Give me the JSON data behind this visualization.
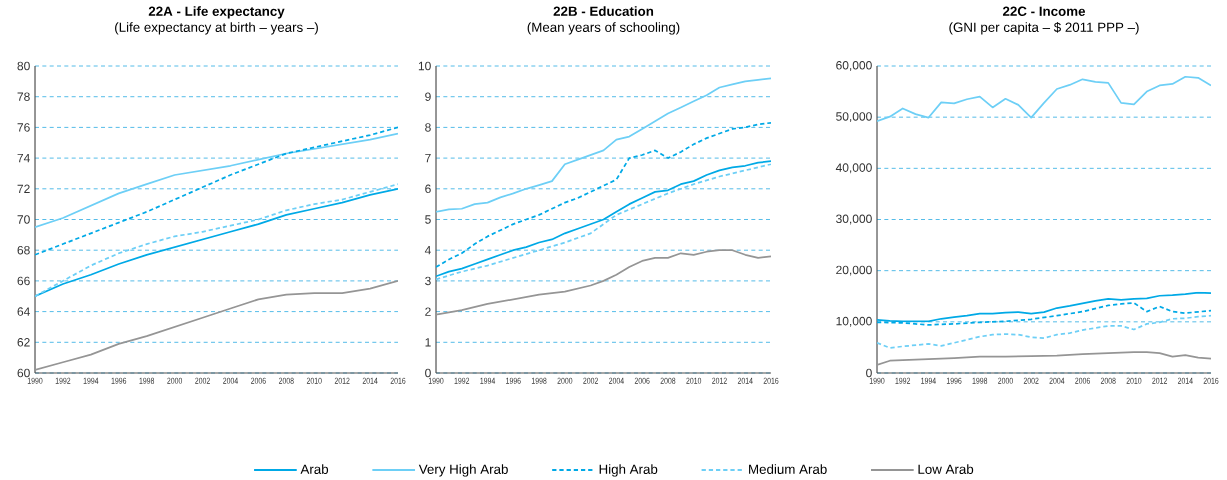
{
  "chart_data": [
    {
      "type": "line",
      "title": "22A - Life expectancy",
      "subtitle": "(Life expectancy at birth – years –)",
      "xlim": [
        1990,
        2016
      ],
      "ylim": [
        60,
        80
      ],
      "xticks": [
        1990,
        1992,
        1994,
        1996,
        1998,
        2000,
        2002,
        2004,
        2006,
        2008,
        2010,
        2012,
        2014,
        2016
      ],
      "yticks": [
        60,
        62,
        64,
        66,
        68,
        70,
        72,
        74,
        76,
        78,
        80
      ],
      "grid": "y",
      "legend": "bottom",
      "series": [
        {
          "name": "Arab",
          "color": "#00a9e6",
          "line_style": "solid",
          "x": [
            1990,
            1992,
            1994,
            1996,
            1998,
            2000,
            2002,
            2004,
            2006,
            2008,
            2010,
            2012,
            2014,
            2016
          ],
          "values": [
            65.0,
            65.8,
            66.4,
            67.1,
            67.7,
            68.2,
            68.7,
            69.2,
            69.7,
            70.3,
            70.7,
            71.1,
            71.6,
            72.0
          ]
        },
        {
          "name": "Very High Arab",
          "color": "#6dcff6",
          "line_style": "solid",
          "x": [
            1990,
            1992,
            1994,
            1996,
            1998,
            2000,
            2002,
            2004,
            2006,
            2008,
            2010,
            2012,
            2014,
            2016
          ],
          "values": [
            69.5,
            70.1,
            70.9,
            71.7,
            72.3,
            72.9,
            73.2,
            73.5,
            73.9,
            74.3,
            74.6,
            74.9,
            75.2,
            75.6
          ]
        },
        {
          "name": "High Arab",
          "color": "#00a9e6",
          "line_style": "dashed",
          "x": [
            1990,
            1992,
            1994,
            1996,
            1998,
            2000,
            2002,
            2004,
            2006,
            2008,
            2010,
            2012,
            2014,
            2016
          ],
          "values": [
            67.7,
            68.4,
            69.1,
            69.8,
            70.5,
            71.3,
            72.1,
            72.9,
            73.6,
            74.3,
            74.7,
            75.1,
            75.5,
            76.0
          ]
        },
        {
          "name": "Medium Arab",
          "color": "#6dcff6",
          "line_style": "dashed",
          "x": [
            1990,
            1992,
            1994,
            1996,
            1998,
            2000,
            2002,
            2004,
            2006,
            2008,
            2010,
            2012,
            2014,
            2016
          ],
          "values": [
            65.0,
            66.0,
            67.0,
            67.8,
            68.4,
            68.9,
            69.2,
            69.6,
            70.0,
            70.6,
            71.0,
            71.3,
            71.8,
            72.3
          ]
        },
        {
          "name": "Low Arab",
          "color": "#959595",
          "line_style": "solid",
          "x": [
            1990,
            1992,
            1994,
            1996,
            1998,
            2000,
            2002,
            2004,
            2006,
            2008,
            2010,
            2012,
            2014,
            2016
          ],
          "values": [
            60.2,
            60.7,
            61.2,
            61.9,
            62.4,
            63.0,
            63.6,
            64.2,
            64.8,
            65.1,
            65.2,
            65.2,
            65.5,
            66.0
          ]
        }
      ]
    },
    {
      "type": "line",
      "title": "22B - Education",
      "subtitle": "(Mean years of schooling)",
      "xlim": [
        1990,
        2016
      ],
      "ylim": [
        0,
        10
      ],
      "xticks": [
        1990,
        1992,
        1994,
        1996,
        1998,
        2000,
        2002,
        2004,
        2006,
        2008,
        2010,
        2012,
        2014,
        2016
      ],
      "yticks": [
        0,
        1,
        2,
        3,
        4,
        5,
        6,
        7,
        8,
        9,
        10
      ],
      "grid": "y",
      "series": [
        {
          "color": "#00a9e6",
          "line_style": "solid",
          "x": [
            1990,
            1991,
            1992,
            1993,
            1994,
            1995,
            1996,
            1997,
            1998,
            1999,
            2000,
            2001,
            2002,
            2003,
            2004,
            2005,
            2006,
            2007,
            2008,
            2009,
            2010,
            2011,
            2012,
            2013,
            2014,
            2015,
            2016
          ],
          "values": [
            3.15,
            3.3,
            3.4,
            3.55,
            3.7,
            3.85,
            4.0,
            4.1,
            4.25,
            4.35,
            4.55,
            4.7,
            4.85,
            5.0,
            5.25,
            5.5,
            5.7,
            5.9,
            5.95,
            6.15,
            6.25,
            6.45,
            6.6,
            6.7,
            6.75,
            6.85,
            6.9
          ]
        },
        {
          "color": "#6dcff6",
          "line_style": "solid",
          "x": [
            1990,
            1991,
            1992,
            1993,
            1994,
            1995,
            1996,
            1997,
            1998,
            1999,
            2000,
            2001,
            2002,
            2003,
            2004,
            2005,
            2006,
            2007,
            2008,
            2009,
            2010,
            2011,
            2012,
            2013,
            2014,
            2015,
            2016
          ],
          "values": [
            5.25,
            5.33,
            5.35,
            5.5,
            5.55,
            5.72,
            5.85,
            6.0,
            6.12,
            6.25,
            6.8,
            6.95,
            7.1,
            7.25,
            7.6,
            7.7,
            7.95,
            8.2,
            8.45,
            8.65,
            8.85,
            9.05,
            9.3,
            9.4,
            9.5,
            9.55,
            9.6
          ]
        },
        {
          "color": "#00a9e6",
          "line_style": "dashed",
          "x": [
            1990,
            1991,
            1992,
            1993,
            1994,
            1995,
            1996,
            1997,
            1998,
            1999,
            2000,
            2001,
            2002,
            2003,
            2004,
            2005,
            2006,
            2007,
            2008,
            2009,
            2010,
            2011,
            2012,
            2013,
            2014,
            2015,
            2016
          ],
          "values": [
            3.45,
            3.7,
            3.9,
            4.2,
            4.45,
            4.65,
            4.85,
            5.0,
            5.15,
            5.35,
            5.55,
            5.7,
            5.9,
            6.1,
            6.3,
            7.0,
            7.1,
            7.25,
            7.0,
            7.2,
            7.45,
            7.65,
            7.8,
            7.95,
            8.0,
            8.1,
            8.15
          ]
        },
        {
          "color": "#6dcff6",
          "line_style": "dashed",
          "x": [
            1990,
            1992,
            1994,
            1996,
            1998,
            2000,
            2002,
            2003,
            2004,
            2006,
            2008,
            2010,
            2012,
            2014,
            2016
          ],
          "values": [
            3.05,
            3.3,
            3.5,
            3.75,
            4.0,
            4.25,
            4.55,
            4.85,
            5.15,
            5.5,
            5.85,
            6.15,
            6.4,
            6.6,
            6.8
          ]
        },
        {
          "color": "#959595",
          "line_style": "solid",
          "x": [
            1990,
            1992,
            1994,
            1996,
            1998,
            2000,
            2002,
            2003,
            2004,
            2005,
            2006,
            2007,
            2008,
            2009,
            2010,
            2011,
            2012,
            2013,
            2014,
            2015,
            2016
          ],
          "values": [
            1.9,
            2.05,
            2.25,
            2.4,
            2.55,
            2.65,
            2.85,
            3.0,
            3.2,
            3.45,
            3.65,
            3.75,
            3.75,
            3.9,
            3.85,
            3.95,
            4.0,
            4.0,
            3.85,
            3.75,
            3.8
          ]
        }
      ]
    },
    {
      "type": "line",
      "title": "22C - Income",
      "subtitle": "(GNI per capita – $ 2011 PPP –)",
      "xlim": [
        1990,
        2016
      ],
      "ylim": [
        0,
        60000
      ],
      "xticks": [
        1990,
        1992,
        1994,
        1996,
        1998,
        2000,
        2002,
        2004,
        2006,
        2008,
        2010,
        2012,
        2014,
        2016
      ],
      "yticks": [
        0,
        {
          "value": 10000,
          "label": "10,000"
        },
        {
          "value": 20000,
          "label": "20,000"
        },
        {
          "value": 30000,
          "label": "30,000"
        },
        {
          "value": 40000,
          "label": "40,000"
        },
        {
          "value": 50000,
          "label": "50,000"
        },
        {
          "value": 60000,
          "label": "60,000"
        }
      ],
      "grid": "y",
      "series": [
        {
          "color": "#00a9e6",
          "line_style": "solid",
          "x": [
            1990,
            1991,
            1992,
            1993,
            1994,
            1995,
            1996,
            1997,
            1998,
            1999,
            2000,
            2001,
            2002,
            2003,
            2004,
            2005,
            2006,
            2007,
            2008,
            2009,
            2010,
            2011,
            2012,
            2013,
            2014,
            2015,
            2016
          ],
          "values": [
            10400,
            10200,
            10100,
            10100,
            10100,
            10600,
            10900,
            11200,
            11600,
            11600,
            11800,
            11900,
            11600,
            11900,
            12700,
            13100,
            13600,
            14100,
            14500,
            14300,
            14500,
            14600,
            15100,
            15200,
            15400,
            15700,
            15600
          ]
        },
        {
          "color": "#6dcff6",
          "line_style": "solid",
          "x": [
            1990,
            1991,
            1992,
            1993,
            1994,
            1995,
            1996,
            1997,
            1998,
            1999,
            2000,
            2001,
            2002,
            2003,
            2004,
            2005,
            2006,
            2007,
            2008,
            2009,
            2010,
            2011,
            2012,
            2013,
            2014,
            2015,
            2016
          ],
          "values": [
            49200,
            50100,
            51700,
            50600,
            49900,
            52900,
            52700,
            53500,
            54000,
            51900,
            53600,
            52400,
            49900,
            52800,
            55500,
            56300,
            57400,
            56900,
            56700,
            52800,
            52500,
            55000,
            56200,
            56500,
            57900,
            57700,
            56200
          ]
        },
        {
          "color": "#00a9e6",
          "line_style": "dashed",
          "x": [
            1990,
            1992,
            1994,
            1996,
            1998,
            2000,
            2002,
            2004,
            2006,
            2008,
            2009,
            2010,
            2011,
            2012,
            2013,
            2014,
            2016
          ],
          "values": [
            9900,
            9800,
            9400,
            9600,
            9900,
            10100,
            10500,
            11200,
            12000,
            13200,
            13500,
            13700,
            12000,
            13000,
            12000,
            11700,
            12200
          ]
        },
        {
          "color": "#6dcff6",
          "line_style": "dashed",
          "x": [
            1990,
            1991,
            1992,
            1994,
            1995,
            1997,
            1998,
            1999,
            2000,
            2001,
            2002,
            2003,
            2004,
            2005,
            2006,
            2007,
            2008,
            2009,
            2010,
            2011,
            2012,
            2013,
            2014,
            2015,
            2016
          ],
          "values": [
            5900,
            4900,
            5200,
            5700,
            5300,
            6500,
            7100,
            7500,
            7600,
            7500,
            7000,
            6800,
            7500,
            7800,
            8400,
            8800,
            9200,
            9200,
            8500,
            9600,
            9900,
            10600,
            10700,
            11000,
            11200
          ]
        },
        {
          "color": "#959595",
          "line_style": "solid",
          "x": [
            1990,
            1991,
            1992,
            1994,
            1996,
            1998,
            2000,
            2002,
            2004,
            2006,
            2008,
            2010,
            2011,
            2012,
            2013,
            2014,
            2015,
            2016
          ],
          "values": [
            1600,
            2400,
            2500,
            2700,
            2900,
            3200,
            3200,
            3300,
            3400,
            3700,
            3900,
            4100,
            4100,
            3900,
            3200,
            3500,
            3000,
            2800
          ]
        }
      ]
    }
  ]
}
